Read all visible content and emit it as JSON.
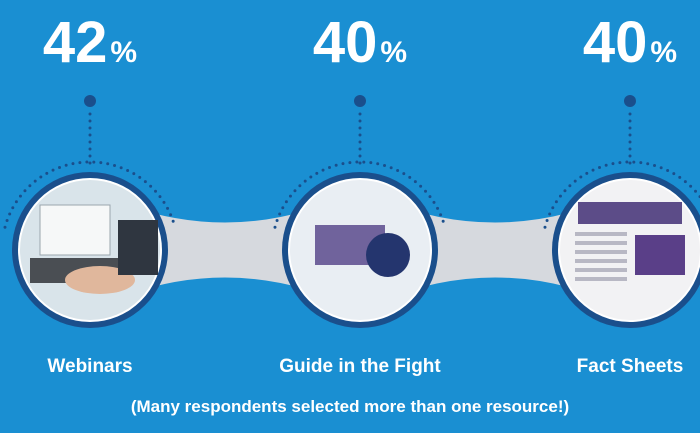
{
  "items": [
    {
      "number": "42",
      "unit": "%",
      "label": "Webinars"
    },
    {
      "number": "40",
      "unit": "%",
      "label": "Guide in the Fight"
    },
    {
      "number": "40",
      "unit": "%",
      "label": "Fact Sheets"
    }
  ],
  "footnote": "(Many respondents selected more than one resource!)"
}
